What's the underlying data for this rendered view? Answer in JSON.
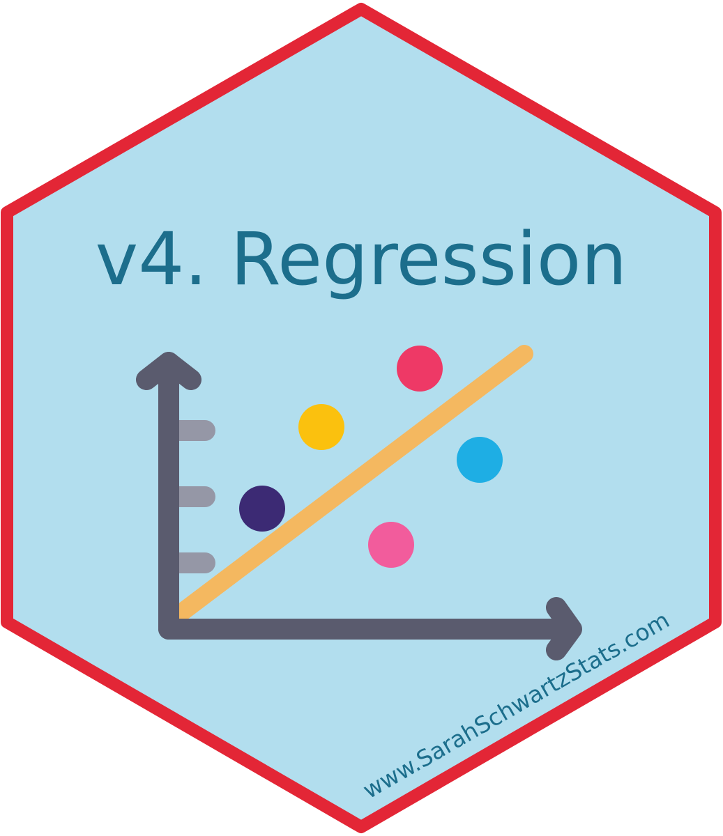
{
  "title": "v4. Regression",
  "website": "www.SarahSchwartzStats.com",
  "colors": {
    "border": "#e32636",
    "background": "#b2deee",
    "title_text": "#1c6e8c",
    "axis": "#5a5b6e",
    "ticks": "#9597a6",
    "regression_line": "#f4b860"
  },
  "icon": {
    "name": "scatter-plot-with-regression-line-icon",
    "points": [
      {
        "color": "#3c2a74"
      },
      {
        "color": "#fbc10e"
      },
      {
        "color": "#ee3966"
      },
      {
        "color": "#1eaee4"
      },
      {
        "color": "#f25c9c"
      }
    ]
  }
}
